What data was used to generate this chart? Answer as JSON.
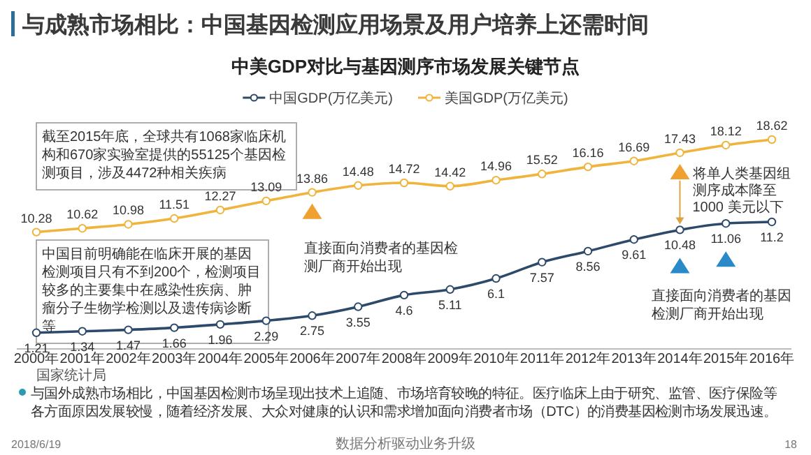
{
  "chart_data": {
    "type": "line",
    "title": "与成熟市场相比：中国基因检测应用场景及用户培养上还需时间",
    "subtitle": "中美GDP对比与基因测序市场发展关键节点",
    "categories": [
      "2000年",
      "2001年",
      "2002年",
      "2003年",
      "2004年",
      "2005年",
      "2006年",
      "2007年",
      "2008年",
      "2009年",
      "2010年",
      "2011年",
      "2012年",
      "2013年",
      "2014年",
      "2015年",
      "2016年"
    ],
    "series": [
      {
        "name": "中国GDP(万亿美元)",
        "color": "#2e4a6b",
        "values": [
          1.21,
          1.34,
          1.47,
          1.66,
          1.96,
          2.29,
          2.75,
          3.55,
          4.6,
          5.11,
          6.1,
          7.57,
          8.56,
          9.61,
          10.48,
          11.06,
          11.2
        ]
      },
      {
        "name": "美国GDP(万亿美元)",
        "color": "#f0b43c",
        "values": [
          10.28,
          10.62,
          10.98,
          11.51,
          12.27,
          13.09,
          13.86,
          14.48,
          14.72,
          14.42,
          14.96,
          15.52,
          16.16,
          16.69,
          17.43,
          18.12,
          18.62
        ]
      }
    ],
    "data_labels": true,
    "marker": "circle",
    "legend": "top",
    "annotations": [
      "截至2015年底，全球共有1068家临床机构和670家实验室提供的55125个基因检测项目，涉及4472种相关疾病",
      "中国目前明确能在临床开展的基因检测项目只有不到200个，检测项目较多的主要集中在感染性疾病、肿瘤分子生物学检测以及遗传病诊断等",
      "直接面向消费者的基因检测厂商开始出现",
      "将单人类基因组测序成本降至 1000 美元以下",
      "直接面向消费者的基因检测厂商开始出现",
      "国家统计局",
      "与国外成熟市场相比，中国基因检测市场呈现出技术上追随、市场培育较晚的特征。医疗临床上由于研究、监管、医疗保险等各方面原因发展较慢，随着经济发展、大众对健康的认识和需求增加面向消费者市场（DTC）的消费基因检测市场发展迅速。",
      "2018/6/19",
      "数据分析驱动业务升级",
      "18"
    ]
  }
}
